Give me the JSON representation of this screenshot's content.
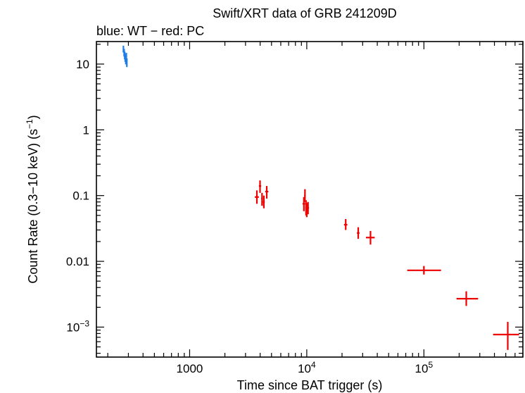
{
  "chart_data": {
    "type": "scatter",
    "title": "Swift/XRT data of GRB 241209D",
    "subtitle": "blue: WT − red: PC",
    "xlabel": "Time since BAT trigger (s)",
    "ylabel_main": "Count Rate (0.3−10 keV) (s",
    "ylabel_sup": "−1",
    "ylabel_end": ")",
    "x_scale": "log",
    "y_scale": "log",
    "xlim": [
      160,
      700000
    ],
    "ylim": [
      0.00035,
      22
    ],
    "grid": false,
    "x_ticks": [
      {
        "value": 1000,
        "label": "1000",
        "base": "",
        "exp": ""
      },
      {
        "value": 10000,
        "label": "",
        "base": "10",
        "exp": "4"
      },
      {
        "value": 100000,
        "label": "",
        "base": "10",
        "exp": "5"
      }
    ],
    "y_ticks": [
      {
        "value": 10,
        "label": "10",
        "base": "",
        "exp": ""
      },
      {
        "value": 1,
        "label": "1",
        "base": "",
        "exp": ""
      },
      {
        "value": 0.1,
        "label": "0.1",
        "base": "",
        "exp": ""
      },
      {
        "value": 0.01,
        "label": "0.01",
        "base": "",
        "exp": ""
      },
      {
        "value": 0.001,
        "label": "",
        "base": "10",
        "exp": "−3"
      }
    ],
    "series": [
      {
        "color": "#1e7de6",
        "points": [
          {
            "x": 272,
            "xlo": 270,
            "xhi": 274,
            "y": 17.0,
            "ylo": 15.0,
            "yhi": 19.0
          },
          {
            "x": 276,
            "xlo": 274,
            "xhi": 278,
            "y": 15.0,
            "ylo": 13.0,
            "yhi": 17.0
          },
          {
            "x": 279,
            "xlo": 277,
            "xhi": 281,
            "y": 13.5,
            "ylo": 11.8,
            "yhi": 15.5
          },
          {
            "x": 282,
            "xlo": 280,
            "xhi": 284,
            "y": 12.5,
            "ylo": 10.8,
            "yhi": 14.2
          },
          {
            "x": 285,
            "xlo": 283,
            "xhi": 287,
            "y": 11.5,
            "ylo": 9.9,
            "yhi": 13.2
          },
          {
            "x": 288,
            "xlo": 286,
            "xhi": 290,
            "y": 12.8,
            "ylo": 11.0,
            "yhi": 14.8
          },
          {
            "x": 291,
            "xlo": 289,
            "xhi": 293,
            "y": 10.5,
            "ylo": 9.0,
            "yhi": 12.2
          }
        ]
      },
      {
        "color": "#ee0000",
        "points": [
          {
            "x": 3750,
            "xlo": 3600,
            "xhi": 3900,
            "y": 0.095,
            "ylo": 0.075,
            "yhi": 0.12
          },
          {
            "x": 3990,
            "xlo": 3900,
            "xhi": 4080,
            "y": 0.14,
            "ylo": 0.11,
            "yhi": 0.17
          },
          {
            "x": 4150,
            "xlo": 4080,
            "xhi": 4220,
            "y": 0.09,
            "ylo": 0.07,
            "yhi": 0.11
          },
          {
            "x": 4300,
            "xlo": 4220,
            "xhi": 4380,
            "y": 0.08,
            "ylo": 0.064,
            "yhi": 0.1
          },
          {
            "x": 4550,
            "xlo": 4420,
            "xhi": 4700,
            "y": 0.115,
            "ylo": 0.09,
            "yhi": 0.14
          },
          {
            "x": 9450,
            "xlo": 9200,
            "xhi": 9700,
            "y": 0.075,
            "ylo": 0.058,
            "yhi": 0.095
          },
          {
            "x": 9650,
            "xlo": 9500,
            "xhi": 9800,
            "y": 0.1,
            "ylo": 0.08,
            "yhi": 0.125
          },
          {
            "x": 9850,
            "xlo": 9700,
            "xhi": 10000,
            "y": 0.065,
            "ylo": 0.05,
            "yhi": 0.085
          },
          {
            "x": 10000,
            "xlo": 9850,
            "xhi": 10200,
            "y": 0.06,
            "ylo": 0.047,
            "yhi": 0.077
          },
          {
            "x": 10250,
            "xlo": 10050,
            "xhi": 10450,
            "y": 0.065,
            "ylo": 0.052,
            "yhi": 0.08
          },
          {
            "x": 21500,
            "xlo": 20800,
            "xhi": 22200,
            "y": 0.036,
            "ylo": 0.03,
            "yhi": 0.044
          },
          {
            "x": 27500,
            "xlo": 26800,
            "xhi": 28200,
            "y": 0.027,
            "ylo": 0.022,
            "yhi": 0.033
          },
          {
            "x": 35000,
            "xlo": 32000,
            "xhi": 38000,
            "y": 0.023,
            "ylo": 0.018,
            "yhi": 0.029
          },
          {
            "x": 100000,
            "xlo": 72000,
            "xhi": 140000,
            "y": 0.0073,
            "ylo": 0.0063,
            "yhi": 0.0085
          },
          {
            "x": 230000,
            "xlo": 190000,
            "xhi": 290000,
            "y": 0.0027,
            "ylo": 0.0021,
            "yhi": 0.0035
          },
          {
            "x": 520000,
            "xlo": 390000,
            "xhi": 650000,
            "y": 0.00077,
            "ylo": 0.00045,
            "yhi": 0.0012
          }
        ]
      }
    ]
  }
}
